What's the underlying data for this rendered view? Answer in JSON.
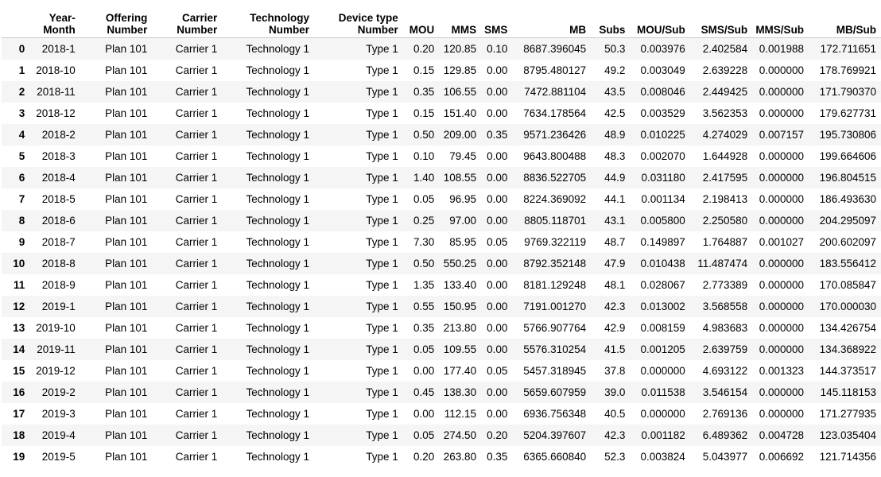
{
  "columns": [
    [
      "Year-",
      "Month"
    ],
    [
      "Offering",
      "Number"
    ],
    [
      "Carrier",
      "Number"
    ],
    [
      "Technology",
      "Number"
    ],
    [
      "Device type",
      "Number"
    ],
    [
      "MOU"
    ],
    [
      "MMS"
    ],
    [
      "SMS"
    ],
    [
      "MB"
    ],
    [
      "Subs"
    ],
    [
      "MOU/Sub"
    ],
    [
      "SMS/Sub"
    ],
    [
      "MMS/Sub"
    ],
    [
      "MB/Sub"
    ]
  ],
  "rows": [
    [
      "0",
      "2018-1",
      "Plan 101",
      "Carrier 1",
      "Technology 1",
      "Type 1",
      "0.20",
      "120.85",
      "0.10",
      "8687.396045",
      "50.3",
      "0.003976",
      "2.402584",
      "0.001988",
      "172.711651"
    ],
    [
      "1",
      "2018-10",
      "Plan 101",
      "Carrier 1",
      "Technology 1",
      "Type 1",
      "0.15",
      "129.85",
      "0.00",
      "8795.480127",
      "49.2",
      "0.003049",
      "2.639228",
      "0.000000",
      "178.769921"
    ],
    [
      "2",
      "2018-11",
      "Plan 101",
      "Carrier 1",
      "Technology 1",
      "Type 1",
      "0.35",
      "106.55",
      "0.00",
      "7472.881104",
      "43.5",
      "0.008046",
      "2.449425",
      "0.000000",
      "171.790370"
    ],
    [
      "3",
      "2018-12",
      "Plan 101",
      "Carrier 1",
      "Technology 1",
      "Type 1",
      "0.15",
      "151.40",
      "0.00",
      "7634.178564",
      "42.5",
      "0.003529",
      "3.562353",
      "0.000000",
      "179.627731"
    ],
    [
      "4",
      "2018-2",
      "Plan 101",
      "Carrier 1",
      "Technology 1",
      "Type 1",
      "0.50",
      "209.00",
      "0.35",
      "9571.236426",
      "48.9",
      "0.010225",
      "4.274029",
      "0.007157",
      "195.730806"
    ],
    [
      "5",
      "2018-3",
      "Plan 101",
      "Carrier 1",
      "Technology 1",
      "Type 1",
      "0.10",
      "79.45",
      "0.00",
      "9643.800488",
      "48.3",
      "0.002070",
      "1.644928",
      "0.000000",
      "199.664606"
    ],
    [
      "6",
      "2018-4",
      "Plan 101",
      "Carrier 1",
      "Technology 1",
      "Type 1",
      "1.40",
      "108.55",
      "0.00",
      "8836.522705",
      "44.9",
      "0.031180",
      "2.417595",
      "0.000000",
      "196.804515"
    ],
    [
      "7",
      "2018-5",
      "Plan 101",
      "Carrier 1",
      "Technology 1",
      "Type 1",
      "0.05",
      "96.95",
      "0.00",
      "8224.369092",
      "44.1",
      "0.001134",
      "2.198413",
      "0.000000",
      "186.493630"
    ],
    [
      "8",
      "2018-6",
      "Plan 101",
      "Carrier 1",
      "Technology 1",
      "Type 1",
      "0.25",
      "97.00",
      "0.00",
      "8805.118701",
      "43.1",
      "0.005800",
      "2.250580",
      "0.000000",
      "204.295097"
    ],
    [
      "9",
      "2018-7",
      "Plan 101",
      "Carrier 1",
      "Technology 1",
      "Type 1",
      "7.30",
      "85.95",
      "0.05",
      "9769.322119",
      "48.7",
      "0.149897",
      "1.764887",
      "0.001027",
      "200.602097"
    ],
    [
      "10",
      "2018-8",
      "Plan 101",
      "Carrier 1",
      "Technology 1",
      "Type 1",
      "0.50",
      "550.25",
      "0.00",
      "8792.352148",
      "47.9",
      "0.010438",
      "11.487474",
      "0.000000",
      "183.556412"
    ],
    [
      "11",
      "2018-9",
      "Plan 101",
      "Carrier 1",
      "Technology 1",
      "Type 1",
      "1.35",
      "133.40",
      "0.00",
      "8181.129248",
      "48.1",
      "0.028067",
      "2.773389",
      "0.000000",
      "170.085847"
    ],
    [
      "12",
      "2019-1",
      "Plan 101",
      "Carrier 1",
      "Technology 1",
      "Type 1",
      "0.55",
      "150.95",
      "0.00",
      "7191.001270",
      "42.3",
      "0.013002",
      "3.568558",
      "0.000000",
      "170.000030"
    ],
    [
      "13",
      "2019-10",
      "Plan 101",
      "Carrier 1",
      "Technology 1",
      "Type 1",
      "0.35",
      "213.80",
      "0.00",
      "5766.907764",
      "42.9",
      "0.008159",
      "4.983683",
      "0.000000",
      "134.426754"
    ],
    [
      "14",
      "2019-11",
      "Plan 101",
      "Carrier 1",
      "Technology 1",
      "Type 1",
      "0.05",
      "109.55",
      "0.00",
      "5576.310254",
      "41.5",
      "0.001205",
      "2.639759",
      "0.000000",
      "134.368922"
    ],
    [
      "15",
      "2019-12",
      "Plan 101",
      "Carrier 1",
      "Technology 1",
      "Type 1",
      "0.00",
      "177.40",
      "0.05",
      "5457.318945",
      "37.8",
      "0.000000",
      "4.693122",
      "0.001323",
      "144.373517"
    ],
    [
      "16",
      "2019-2",
      "Plan 101",
      "Carrier 1",
      "Technology 1",
      "Type 1",
      "0.45",
      "138.30",
      "0.00",
      "5659.607959",
      "39.0",
      "0.011538",
      "3.546154",
      "0.000000",
      "145.118153"
    ],
    [
      "17",
      "2019-3",
      "Plan 101",
      "Carrier 1",
      "Technology 1",
      "Type 1",
      "0.00",
      "112.15",
      "0.00",
      "6936.756348",
      "40.5",
      "0.000000",
      "2.769136",
      "0.000000",
      "171.277935"
    ],
    [
      "18",
      "2019-4",
      "Plan 101",
      "Carrier 1",
      "Technology 1",
      "Type 1",
      "0.05",
      "274.50",
      "0.20",
      "5204.397607",
      "42.3",
      "0.001182",
      "6.489362",
      "0.004728",
      "123.035404"
    ],
    [
      "19",
      "2019-5",
      "Plan 101",
      "Carrier 1",
      "Technology 1",
      "Type 1",
      "0.20",
      "263.80",
      "0.35",
      "6365.660840",
      "52.3",
      "0.003824",
      "5.043977",
      "0.006692",
      "121.714356"
    ]
  ]
}
